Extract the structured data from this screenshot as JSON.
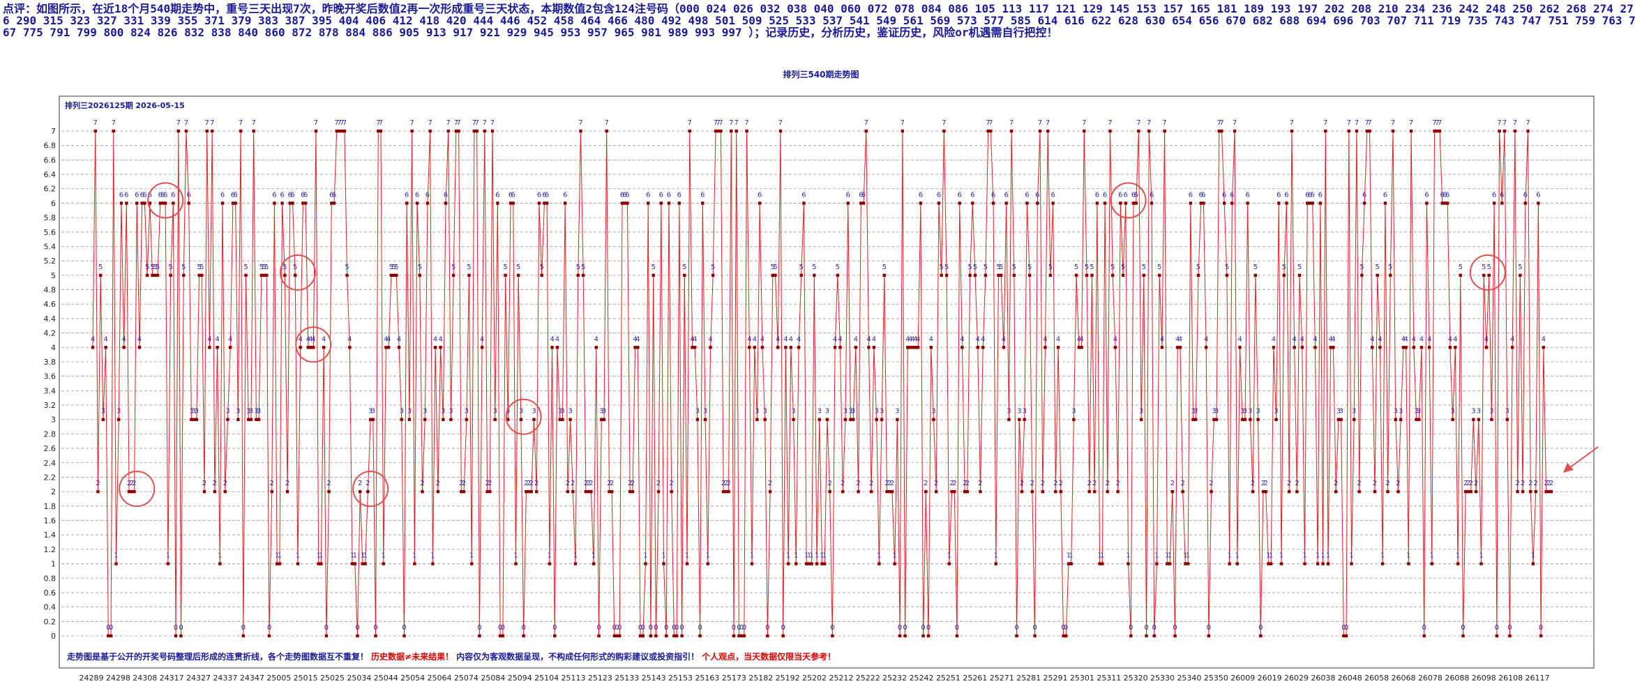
{
  "header": {
    "comment": "点评：如图所示，在近18个月540期走势中，重号三天出现7次，昨晚开奖后数值2再一次形成重号三天状态，本期数值2包含124注号码（000  024  026  032  038  040  060  072  078  084  086  105  113  117  121  129  145  153  157  165  181  189  193  197  202  208  210  234  236  242  248  250  262  268  274  276  290  315  323  327  331  339  355  371  379  383  387  395  404  406  412  418  420  444  446  452  458  464  466  480  492  498  501  509  525  533  537  541  549  561  569  573  577  585  614  616  622  628  630  654  656  670  682  688  694  696  703  707  711  719  735  743  747  751  759  763  767  775  791  799  800  824  826  832  838  840  860  872  878  884  886  905  913  917  921  929  945  953  957  965  981  989  993  997 ）；记录历史，分析历史，鉴证历史，风险or机遇需自行把控！"
  },
  "chart_data": {
    "type": "line",
    "title": "排列三540期走势图",
    "subtitle": "排列三2026125期  2026-05-15",
    "ylim": [
      0,
      7
    ],
    "y_ticks": [
      "0",
      "0.2",
      "0.4",
      "0.6",
      "0.8",
      "1",
      "1.2",
      "1.4",
      "1.6",
      "1.8",
      "2",
      "2.2",
      "2.4",
      "2.6",
      "2.8",
      "3",
      "3.2",
      "3.4",
      "3.6",
      "3.8",
      "4",
      "4.2",
      "4.4",
      "4.6",
      "4.8",
      "5",
      "5.2",
      "5.4",
      "5.6",
      "5.8",
      "6",
      "6.2",
      "6.4",
      "6.6",
      "6.8",
      "7"
    ],
    "x_tick_labels": [
      "24289",
      "24298",
      "24308",
      "24317",
      "24327",
      "24337",
      "24347",
      "25005",
      "25015",
      "25025",
      "25034",
      "25044",
      "25054",
      "25064",
      "25074",
      "25084",
      "25094",
      "25104",
      "25113",
      "25123",
      "25133",
      "25143",
      "25153",
      "25163",
      "25173",
      "25182",
      "25192",
      "25202",
      "25212",
      "25222",
      "25232",
      "25242",
      "25251",
      "25261",
      "25271",
      "25281",
      "25291",
      "25301",
      "25311",
      "25320",
      "25330",
      "25340",
      "25350",
      "26009",
      "26019",
      "26029",
      "26038",
      "26048",
      "26058",
      "26068",
      "26078",
      "26088",
      "26098",
      "26108",
      "26117"
    ],
    "grid": true,
    "line_color": "#e02020",
    "marker_color": "#8b0000",
    "highlight_color": "#e05050",
    "series": [
      {
        "values": [
          4,
          7,
          2,
          5,
          3,
          4,
          0,
          0,
          7,
          1,
          3,
          6,
          4,
          6,
          2,
          2,
          2,
          6,
          4,
          6,
          6,
          5,
          6,
          5,
          5,
          5,
          6,
          6,
          6,
          1,
          5,
          6,
          0,
          7,
          0,
          5,
          7,
          6,
          3,
          3,
          3,
          5,
          5,
          2,
          7,
          4,
          7,
          2,
          4,
          1,
          6,
          2,
          3,
          4,
          6,
          6,
          3,
          7,
          0,
          5,
          3,
          3,
          7,
          3,
          3,
          5,
          5,
          5,
          0,
          2,
          6,
          1,
          1,
          6,
          5,
          2,
          6,
          6,
          5,
          1,
          4,
          6,
          6,
          4,
          4,
          4,
          7,
          1,
          1,
          4,
          0,
          2,
          6,
          6,
          7,
          7,
          7,
          7,
          5,
          4,
          1,
          1,
          0,
          2,
          1,
          1,
          2,
          3,
          3,
          0,
          7,
          7,
          1,
          4,
          4,
          5,
          5,
          5,
          4,
          3,
          0,
          6,
          3,
          7,
          1,
          6,
          5,
          2,
          3,
          6,
          7,
          1,
          4,
          2,
          4,
          3,
          6,
          7,
          3,
          5,
          7,
          7,
          2,
          2,
          3,
          5,
          1,
          7,
          7,
          0,
          4,
          7,
          2,
          2,
          7,
          3,
          6,
          0,
          0,
          5,
          3,
          6,
          6,
          1,
          5,
          3,
          0,
          2,
          2,
          2,
          3,
          2,
          6,
          5,
          6,
          6,
          1,
          4,
          0,
          4,
          3,
          3,
          6,
          2,
          3,
          2,
          1,
          5,
          7,
          5,
          2,
          2,
          2,
          1,
          4,
          0,
          3,
          3,
          7,
          2,
          2,
          0,
          0,
          0,
          6,
          6,
          6,
          2,
          2,
          4,
          4,
          0,
          0,
          1,
          6,
          0,
          5,
          0,
          2,
          6,
          1,
          0,
          6,
          2,
          0,
          0,
          6,
          0,
          5,
          1,
          7,
          4,
          4,
          3,
          0,
          6,
          3,
          1,
          4,
          5,
          7,
          7,
          7,
          2,
          2,
          2,
          7,
          0,
          7,
          0,
          0,
          0,
          7,
          4,
          1,
          4,
          3,
          6,
          4,
          3,
          0,
          2,
          5,
          5,
          4,
          7,
          0,
          4,
          1,
          4,
          3,
          1,
          4,
          5,
          6,
          1,
          1,
          1,
          5,
          1,
          3,
          1,
          1,
          3,
          2,
          0,
          4,
          5,
          4,
          2,
          3,
          6,
          3,
          3,
          4,
          2,
          6,
          6,
          7,
          4,
          2,
          4,
          3,
          1,
          3,
          5,
          2,
          2,
          2,
          1,
          3,
          0,
          7,
          0,
          4,
          4,
          4,
          4,
          4,
          6,
          0,
          2,
          0,
          4,
          3,
          2,
          6,
          5,
          7,
          5,
          1,
          2,
          2,
          0,
          6,
          4,
          2,
          2,
          5,
          6,
          5,
          4,
          2,
          4,
          5,
          7,
          7,
          6,
          1,
          5,
          5,
          4,
          6,
          3,
          7,
          5,
          0,
          3,
          2,
          3,
          6,
          5,
          2,
          0,
          6,
          7,
          2,
          4,
          7,
          5,
          6,
          2,
          4,
          2,
          0,
          0,
          1,
          1,
          3,
          5,
          4,
          4,
          7,
          5,
          2,
          5,
          2,
          6,
          1,
          1,
          6,
          2,
          7,
          5,
          4,
          2,
          6,
          5,
          6,
          1,
          0,
          6,
          6,
          7,
          3,
          5,
          0,
          7,
          6,
          0,
          1,
          5,
          4,
          7,
          1,
          1,
          2,
          0,
          4,
          4,
          2,
          1,
          1,
          6,
          3,
          3,
          5,
          6,
          6,
          4,
          0,
          2,
          3,
          3,
          7,
          7,
          6,
          5,
          1,
          6,
          7,
          1,
          4,
          3,
          3,
          6,
          3,
          2,
          5,
          3,
          0,
          2,
          2,
          1,
          1,
          4,
          3,
          6,
          1,
          5,
          6,
          2,
          7,
          4,
          2,
          5,
          4,
          1,
          6,
          6,
          6,
          4,
          1,
          6,
          1,
          7,
          1,
          4,
          4,
          2,
          3,
          3,
          0,
          0,
          7,
          1,
          3,
          7,
          2,
          5,
          6,
          7,
          7,
          4,
          2,
          5,
          4,
          1,
          6,
          2,
          5,
          7,
          3,
          2,
          3,
          4,
          4,
          1,
          7,
          4,
          3,
          3,
          4,
          0,
          6,
          4,
          1,
          7,
          7,
          7,
          6,
          6,
          6,
          4,
          3,
          4,
          1,
          5,
          0,
          2,
          2,
          2,
          3,
          2,
          3,
          1,
          5,
          4,
          5,
          3,
          6,
          0,
          7,
          6,
          7,
          3,
          0,
          4,
          7,
          2,
          5,
          2,
          6,
          7,
          2,
          1,
          2,
          6,
          0,
          4,
          2,
          2,
          2
        ]
      }
    ],
    "highlights": [
      {
        "start": 16,
        "end": 18
      },
      {
        "start": 27,
        "end": 29
      },
      {
        "start": 78,
        "end": 80
      },
      {
        "start": 84,
        "end": 86
      },
      {
        "start": 106,
        "end": 108
      },
      {
        "start": 165,
        "end": 167
      },
      {
        "start": 398,
        "end": 400
      },
      {
        "start": 536,
        "end": 539
      }
    ]
  },
  "footer": {
    "blue_1": "走势图是基于公开的开奖号码整理后形成的连贯折线，各个走势图数据互不重复！",
    "red_1": "历史数据≠未来结果！",
    "blue_2": "内容仅为客观数据呈现，不构成任何形式的购彩建议或投资指引！",
    "red_2": "个人观点，当天数据仅限当天参考！"
  }
}
